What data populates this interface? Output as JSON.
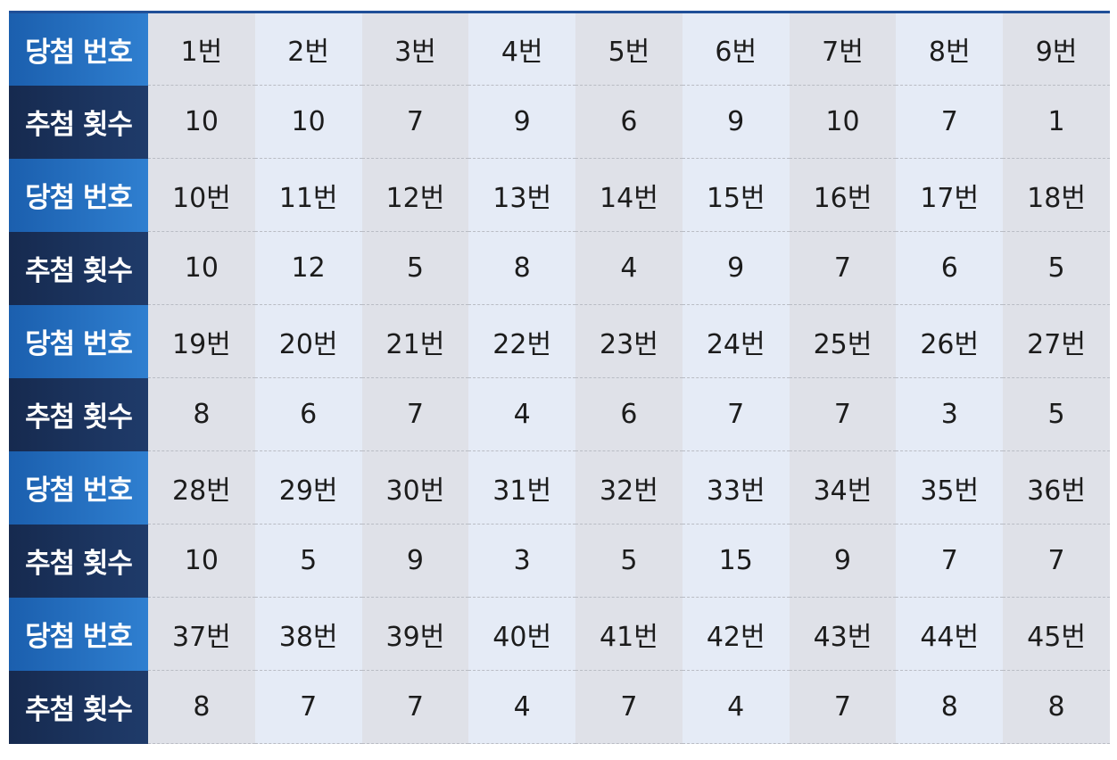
{
  "row_labels": {
    "number": "당첨 번호",
    "count": "추첨 횟수"
  },
  "groups": [
    {
      "numbers": [
        "1번",
        "2번",
        "3번",
        "4번",
        "5번",
        "6번",
        "7번",
        "8번",
        "9번"
      ],
      "counts": [
        "10",
        "10",
        "7",
        "9",
        "6",
        "9",
        "10",
        "7",
        "1"
      ]
    },
    {
      "numbers": [
        "10번",
        "11번",
        "12번",
        "13번",
        "14번",
        "15번",
        "16번",
        "17번",
        "18번"
      ],
      "counts": [
        "10",
        "12",
        "5",
        "8",
        "4",
        "9",
        "7",
        "6",
        "5"
      ]
    },
    {
      "numbers": [
        "19번",
        "20번",
        "21번",
        "22번",
        "23번",
        "24번",
        "25번",
        "26번",
        "27번"
      ],
      "counts": [
        "8",
        "6",
        "7",
        "4",
        "6",
        "7",
        "7",
        "3",
        "5"
      ]
    },
    {
      "numbers": [
        "28번",
        "29번",
        "30번",
        "31번",
        "32번",
        "33번",
        "34번",
        "35번",
        "36번"
      ],
      "counts": [
        "10",
        "5",
        "9",
        "3",
        "5",
        "15",
        "9",
        "7",
        "7"
      ]
    },
    {
      "numbers": [
        "37번",
        "38번",
        "39번",
        "40번",
        "41번",
        "42번",
        "43번",
        "44번",
        "45번"
      ],
      "counts": [
        "8",
        "7",
        "7",
        "4",
        "7",
        "4",
        "7",
        "8",
        "8"
      ]
    }
  ],
  "colors": {
    "number_header_bg": "#2a74c4",
    "count_header_bg": "#1b325c",
    "cell_bg_gray": "#dfe1e8",
    "cell_bg_blue": "#e5ebf6",
    "group_divider": "#1f4f98",
    "text": "#1c1c1c"
  }
}
